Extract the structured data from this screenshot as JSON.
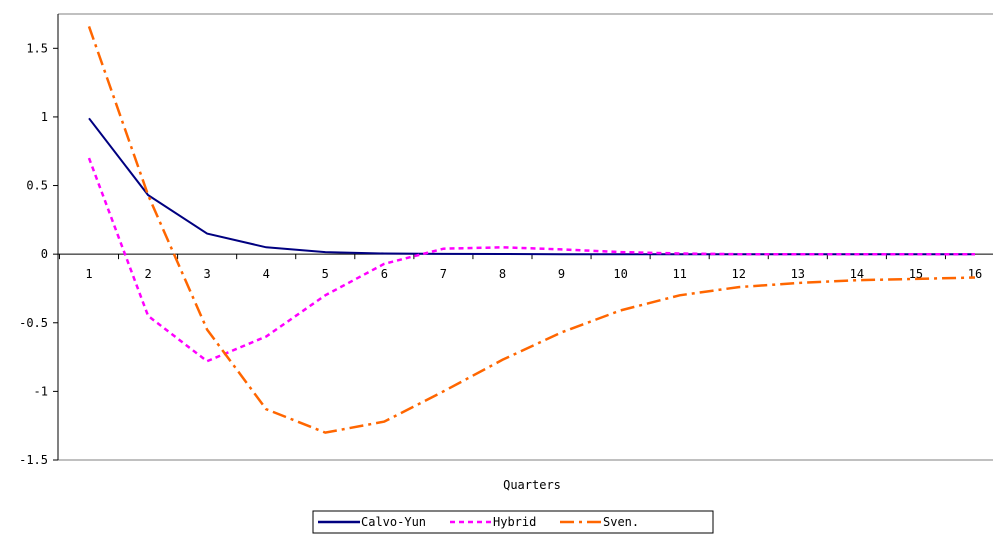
{
  "chart_data": {
    "type": "line",
    "title": "",
    "xlabel": "Quarters",
    "ylabel": "",
    "x": [
      1,
      2,
      3,
      4,
      5,
      6,
      7,
      8,
      9,
      10,
      11,
      12,
      13,
      14,
      15,
      16
    ],
    "x_tick_labels": [
      "1",
      "2",
      "3",
      "4",
      "5",
      "6",
      "7",
      "8",
      "9",
      "10",
      "11",
      "12",
      "13",
      "14",
      "15",
      "16"
    ],
    "ylim": [
      -1.5,
      1.75
    ],
    "y_ticks": [
      -1.5,
      -1,
      -0.5,
      0,
      0.5,
      1,
      1.5
    ],
    "y_tick_labels": [
      "-1.5",
      "-1",
      "-0.5",
      "0",
      "0.5",
      "1",
      "1.5"
    ],
    "grid": false,
    "legend_position": "bottom",
    "series": [
      {
        "name": "Calvo-Yun",
        "color": "#000080",
        "style": "solid",
        "values": [
          0.99,
          0.43,
          0.15,
          0.05,
          0.015,
          0.005,
          0.002,
          0.001,
          0,
          0,
          0,
          0,
          0,
          0,
          0,
          0
        ]
      },
      {
        "name": "Hybrid",
        "color": "#ff00ff",
        "style": "dashed",
        "values": [
          0.7,
          -0.45,
          -0.78,
          -0.6,
          -0.3,
          -0.07,
          0.04,
          0.05,
          0.035,
          0.015,
          0.005,
          0,
          0,
          0,
          0,
          0
        ]
      },
      {
        "name": "Sven.",
        "color": "#ff6600",
        "style": "dash-dot",
        "values": [
          1.66,
          0.43,
          -0.55,
          -1.13,
          -1.3,
          -1.22,
          -1.0,
          -0.77,
          -0.57,
          -0.41,
          -0.3,
          -0.24,
          -0.21,
          -0.19,
          -0.18,
          -0.17
        ]
      }
    ]
  }
}
